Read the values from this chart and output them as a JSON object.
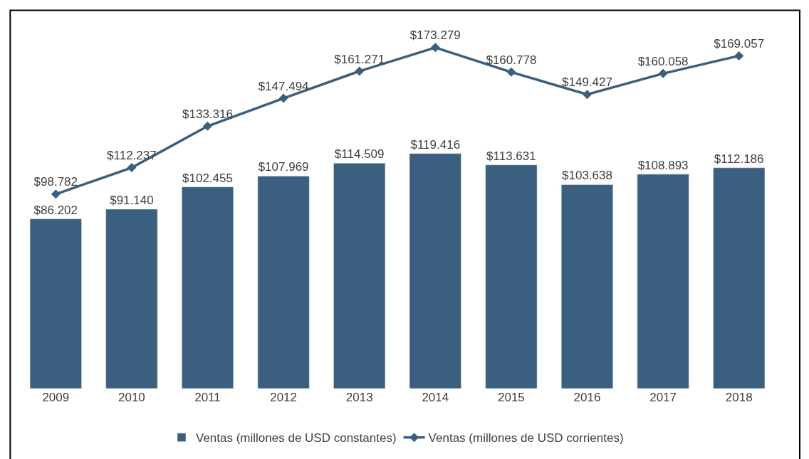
{
  "chart_data": {
    "type": "bar",
    "categories": [
      "2009",
      "2010",
      "2011",
      "2012",
      "2013",
      "2014",
      "2015",
      "2016",
      "2017",
      "2018"
    ],
    "series": [
      {
        "name": "Ventas (millones de USD constantes)",
        "color": "#3b5f7e",
        "values": [
          86202,
          91140,
          102455,
          107969,
          114509,
          119416,
          113631,
          103638,
          108893,
          112186
        ],
        "value_labels": [
          "$86.202",
          "$91.140",
          "$102.455",
          "$107.969",
          "$114.509",
          "$119.416",
          "$113.631",
          "$103.638",
          "$108.893",
          "$112.186"
        ]
      },
      {
        "name": "Ventas (millones de USD corrientes)",
        "type": "line",
        "color": "#3b5f7e",
        "marker": "diamond",
        "values": [
          98782,
          112237,
          133316,
          147494,
          161271,
          173279,
          160778,
          149427,
          160058,
          169057
        ],
        "value_labels": [
          "$98.782",
          "$112.237",
          "$133.316",
          "$147.494",
          "$161.271",
          "$173.279",
          "$160.778",
          "$149.427",
          "$160.058",
          "$169.057"
        ]
      }
    ],
    "tick_labels": "x",
    "legend": "bottom"
  }
}
